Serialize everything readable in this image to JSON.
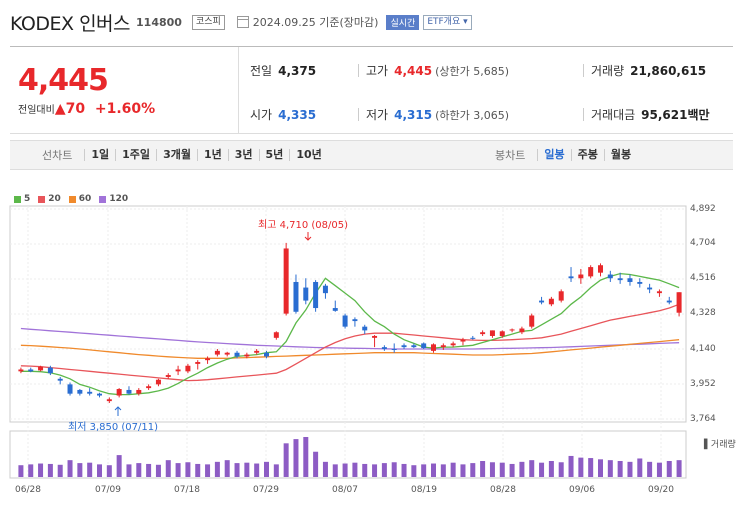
{
  "header": {
    "title": "KODEX 인버스",
    "code": "114800",
    "market": "코스피",
    "date": "2024.09.25 기준(장마감)",
    "realtime": "실시간",
    "etf": "ETF개요 ▾"
  },
  "summary": {
    "price": "4,445",
    "change_label": "전일대비",
    "change": "▲70",
    "change_pct": "+1.60%",
    "prev_close_label": "전일",
    "prev_close": "4,375",
    "high_label": "고가",
    "high": "4,445",
    "upper_limit": "(상한가 5,685)",
    "volume_label": "거래량",
    "volume": "21,860,615",
    "open_label": "시가",
    "open": "4,335",
    "low_label": "저가",
    "low": "4,315",
    "lower_limit": "(하한가 3,065)",
    "amount_label": "거래대금",
    "amount": "95,621",
    "amount_unit": "백만"
  },
  "toolbar": {
    "line_label": "선차트",
    "periods": [
      "1일",
      "1주일",
      "3개월",
      "1년",
      "3년",
      "5년",
      "10년"
    ],
    "candle_label": "봉차트",
    "candles": [
      "일봉",
      "주봉",
      "월봉"
    ],
    "candle_selected": 0
  },
  "colors": {
    "up": "#e8282b",
    "down": "#2a6dd1",
    "ma5": "#5cb84a",
    "ma20": "#e8555a",
    "ma60": "#f08a2c",
    "ma120": "#a173d9",
    "volume": "#8d5cc4"
  },
  "chart_data": {
    "type": "candlestick",
    "legend": [
      "5",
      "20",
      "60",
      "120"
    ],
    "ylim": [
      3764,
      4892
    ],
    "yticks": [
      "4,892",
      "4,704",
      "4,516",
      "4,328",
      "4,140",
      "3,952",
      "3,764"
    ],
    "xticks": [
      "06/28",
      "07/09",
      "07/18",
      "07/29",
      "08/07",
      "08/19",
      "08/28",
      "09/06",
      "09/20"
    ],
    "max_label": "최고 4,710 (08/05)",
    "min_label": "최저 3,850 (07/11)",
    "volume_label": "▌거래량",
    "candles": [
      [
        4020,
        4040,
        4010,
        4030
      ],
      [
        4030,
        4040,
        4015,
        4020
      ],
      [
        4025,
        4050,
        4020,
        4045
      ],
      [
        4040,
        4050,
        4000,
        4010
      ],
      [
        3980,
        3990,
        3950,
        3970
      ],
      [
        3950,
        3960,
        3890,
        3900
      ],
      [
        3920,
        3925,
        3890,
        3900
      ],
      [
        3910,
        3930,
        3890,
        3900
      ],
      [
        3900,
        3905,
        3880,
        3890
      ],
      [
        3860,
        3880,
        3850,
        3870
      ],
      [
        3890,
        3930,
        3880,
        3925
      ],
      [
        3920,
        3940,
        3895,
        3900
      ],
      [
        3900,
        3930,
        3890,
        3920
      ],
      [
        3930,
        3950,
        3920,
        3940
      ],
      [
        3950,
        3980,
        3940,
        3975
      ],
      [
        3990,
        4010,
        3980,
        4000
      ],
      [
        4020,
        4050,
        4000,
        4030
      ],
      [
        4020,
        4060,
        4010,
        4050
      ],
      [
        4060,
        4080,
        4030,
        4070
      ],
      [
        4080,
        4100,
        4060,
        4090
      ],
      [
        4110,
        4140,
        4100,
        4130
      ],
      [
        4110,
        4125,
        4100,
        4120
      ],
      [
        4120,
        4130,
        4090,
        4100
      ],
      [
        4100,
        4120,
        4090,
        4110
      ],
      [
        4120,
        4140,
        4110,
        4130
      ],
      [
        4120,
        4130,
        4090,
        4100
      ],
      [
        4200,
        4235,
        4190,
        4230
      ],
      [
        4330,
        4710,
        4320,
        4680
      ],
      [
        4500,
        4540,
        4330,
        4340
      ],
      [
        4470,
        4520,
        4380,
        4400
      ],
      [
        4500,
        4510,
        4340,
        4360
      ],
      [
        4480,
        4490,
        4410,
        4440
      ],
      [
        4360,
        4400,
        4340,
        4345
      ],
      [
        4320,
        4330,
        4250,
        4260
      ],
      [
        4300,
        4310,
        4260,
        4290
      ],
      [
        4260,
        4270,
        4220,
        4240
      ],
      [
        4200,
        4215,
        4150,
        4210
      ],
      [
        4150,
        4160,
        4130,
        4140
      ],
      [
        4140,
        4170,
        4120,
        4135
      ],
      [
        4160,
        4170,
        4140,
        4150
      ],
      [
        4160,
        4170,
        4145,
        4150
      ],
      [
        4170,
        4175,
        4140,
        4145
      ],
      [
        4130,
        4170,
        4120,
        4165
      ],
      [
        4150,
        4170,
        4135,
        4160
      ],
      [
        4160,
        4180,
        4150,
        4170
      ],
      [
        4180,
        4200,
        4160,
        4190
      ],
      [
        4200,
        4210,
        4190,
        4195
      ],
      [
        4220,
        4240,
        4210,
        4230
      ],
      [
        4210,
        4240,
        4200,
        4240
      ],
      [
        4210,
        4240,
        4200,
        4235
      ],
      [
        4240,
        4250,
        4230,
        4245
      ],
      [
        4230,
        4260,
        4220,
        4250
      ],
      [
        4260,
        4330,
        4250,
        4320
      ],
      [
        4400,
        4420,
        4380,
        4390
      ],
      [
        4380,
        4420,
        4370,
        4410
      ],
      [
        4400,
        4460,
        4390,
        4450
      ],
      [
        4530,
        4580,
        4500,
        4520
      ],
      [
        4520,
        4570,
        4490,
        4540
      ],
      [
        4530,
        4590,
        4520,
        4580
      ],
      [
        4550,
        4600,
        4530,
        4590
      ],
      [
        4540,
        4560,
        4500,
        4520
      ],
      [
        4520,
        4550,
        4490,
        4510
      ],
      [
        4520,
        4540,
        4480,
        4500
      ],
      [
        4500,
        4520,
        4470,
        4490
      ],
      [
        4470,
        4490,
        4440,
        4460
      ],
      [
        4440,
        4460,
        4420,
        4450
      ],
      [
        4400,
        4420,
        4380,
        4390
      ],
      [
        4335,
        4445,
        4315,
        4445
      ]
    ],
    "ma5": [
      4020,
      4020,
      4018,
      4012,
      4000,
      3980,
      3950,
      3935,
      3915,
      3900,
      3895,
      3895,
      3900,
      3905,
      3915,
      3930,
      3955,
      3985,
      4010,
      4040,
      4065,
      4085,
      4100,
      4105,
      4110,
      4120,
      4125,
      4180,
      4280,
      4350,
      4440,
      4520,
      4480,
      4440,
      4400,
      4340,
      4290,
      4260,
      4220,
      4190,
      4170,
      4150,
      4145,
      4150,
      4150,
      4155,
      4160,
      4175,
      4190,
      4205,
      4220,
      4235,
      4240,
      4270,
      4300,
      4330,
      4380,
      4420,
      4470,
      4510,
      4530,
      4545,
      4540,
      4530,
      4520,
      4510,
      4490,
      4470
    ],
    "ma20": [
      4050,
      4048,
      4045,
      4040,
      4035,
      4030,
      4025,
      4020,
      4015,
      4010,
      4005,
      4000,
      3995,
      3990,
      3985,
      3980,
      3975,
      3970,
      3972,
      3975,
      3980,
      3985,
      3990,
      3995,
      4000,
      4005,
      4010,
      4030,
      4060,
      4090,
      4120,
      4150,
      4175,
      4195,
      4210,
      4220,
      4225,
      4225,
      4225,
      4220,
      4215,
      4210,
      4205,
      4200,
      4195,
      4190,
      4188,
      4186,
      4186,
      4188,
      4190,
      4193,
      4196,
      4200,
      4210,
      4220,
      4235,
      4250,
      4265,
      4280,
      4295,
      4305,
      4315,
      4325,
      4335,
      4345,
      4360,
      4380
    ],
    "ma60": [
      4160,
      4158,
      4155,
      4152,
      4148,
      4145,
      4140,
      4135,
      4130,
      4125,
      4120,
      4115,
      4110,
      4106,
      4102,
      4098,
      4095,
      4092,
      4090,
      4090,
      4090,
      4090,
      4092,
      4094,
      4096,
      4098,
      4100,
      4102,
      4104,
      4106,
      4108,
      4110,
      4112,
      4114,
      4116,
      4118,
      4120,
      4120,
      4120,
      4120,
      4120,
      4118,
      4116,
      4114,
      4112,
      4110,
      4108,
      4108,
      4108,
      4110,
      4112,
      4114,
      4116,
      4120,
      4125,
      4130,
      4135,
      4140,
      4145,
      4150,
      4155,
      4160,
      4165,
      4170,
      4175,
      4180,
      4185,
      4190
    ],
    "ma120": [
      4250,
      4246,
      4242,
      4238,
      4234,
      4230,
      4226,
      4222,
      4218,
      4214,
      4210,
      4206,
      4202,
      4198,
      4194,
      4190,
      4186,
      4182,
      4178,
      4175,
      4172,
      4169,
      4166,
      4163,
      4160,
      4158,
      4156,
      4154,
      4152,
      4150,
      4148,
      4147,
      4146,
      4145,
      4144,
      4143,
      4142,
      4141,
      4140,
      4140,
      4140,
      4140,
      4140,
      4140,
      4140,
      4140,
      4140,
      4141,
      4142,
      4143,
      4144,
      4145,
      4146,
      4147,
      4148,
      4150,
      4152,
      4154,
      4156,
      4158,
      4160,
      4162,
      4164,
      4166,
      4168,
      4170,
      4172,
      4174
    ],
    "volume": [
      28,
      30,
      32,
      31,
      29,
      40,
      33,
      34,
      30,
      28,
      52,
      30,
      33,
      31,
      29,
      40,
      33,
      35,
      31,
      30,
      36,
      40,
      33,
      34,
      32,
      36,
      30,
      80,
      90,
      95,
      60,
      36,
      30,
      32,
      34,
      31,
      30,
      33,
      35,
      31,
      28,
      30,
      32,
      30,
      34,
      30,
      33,
      38,
      35,
      34,
      31,
      36,
      40,
      34,
      38,
      35,
      50,
      46,
      45,
      42,
      40,
      38,
      36,
      44,
      36,
      34,
      38,
      40
    ]
  }
}
